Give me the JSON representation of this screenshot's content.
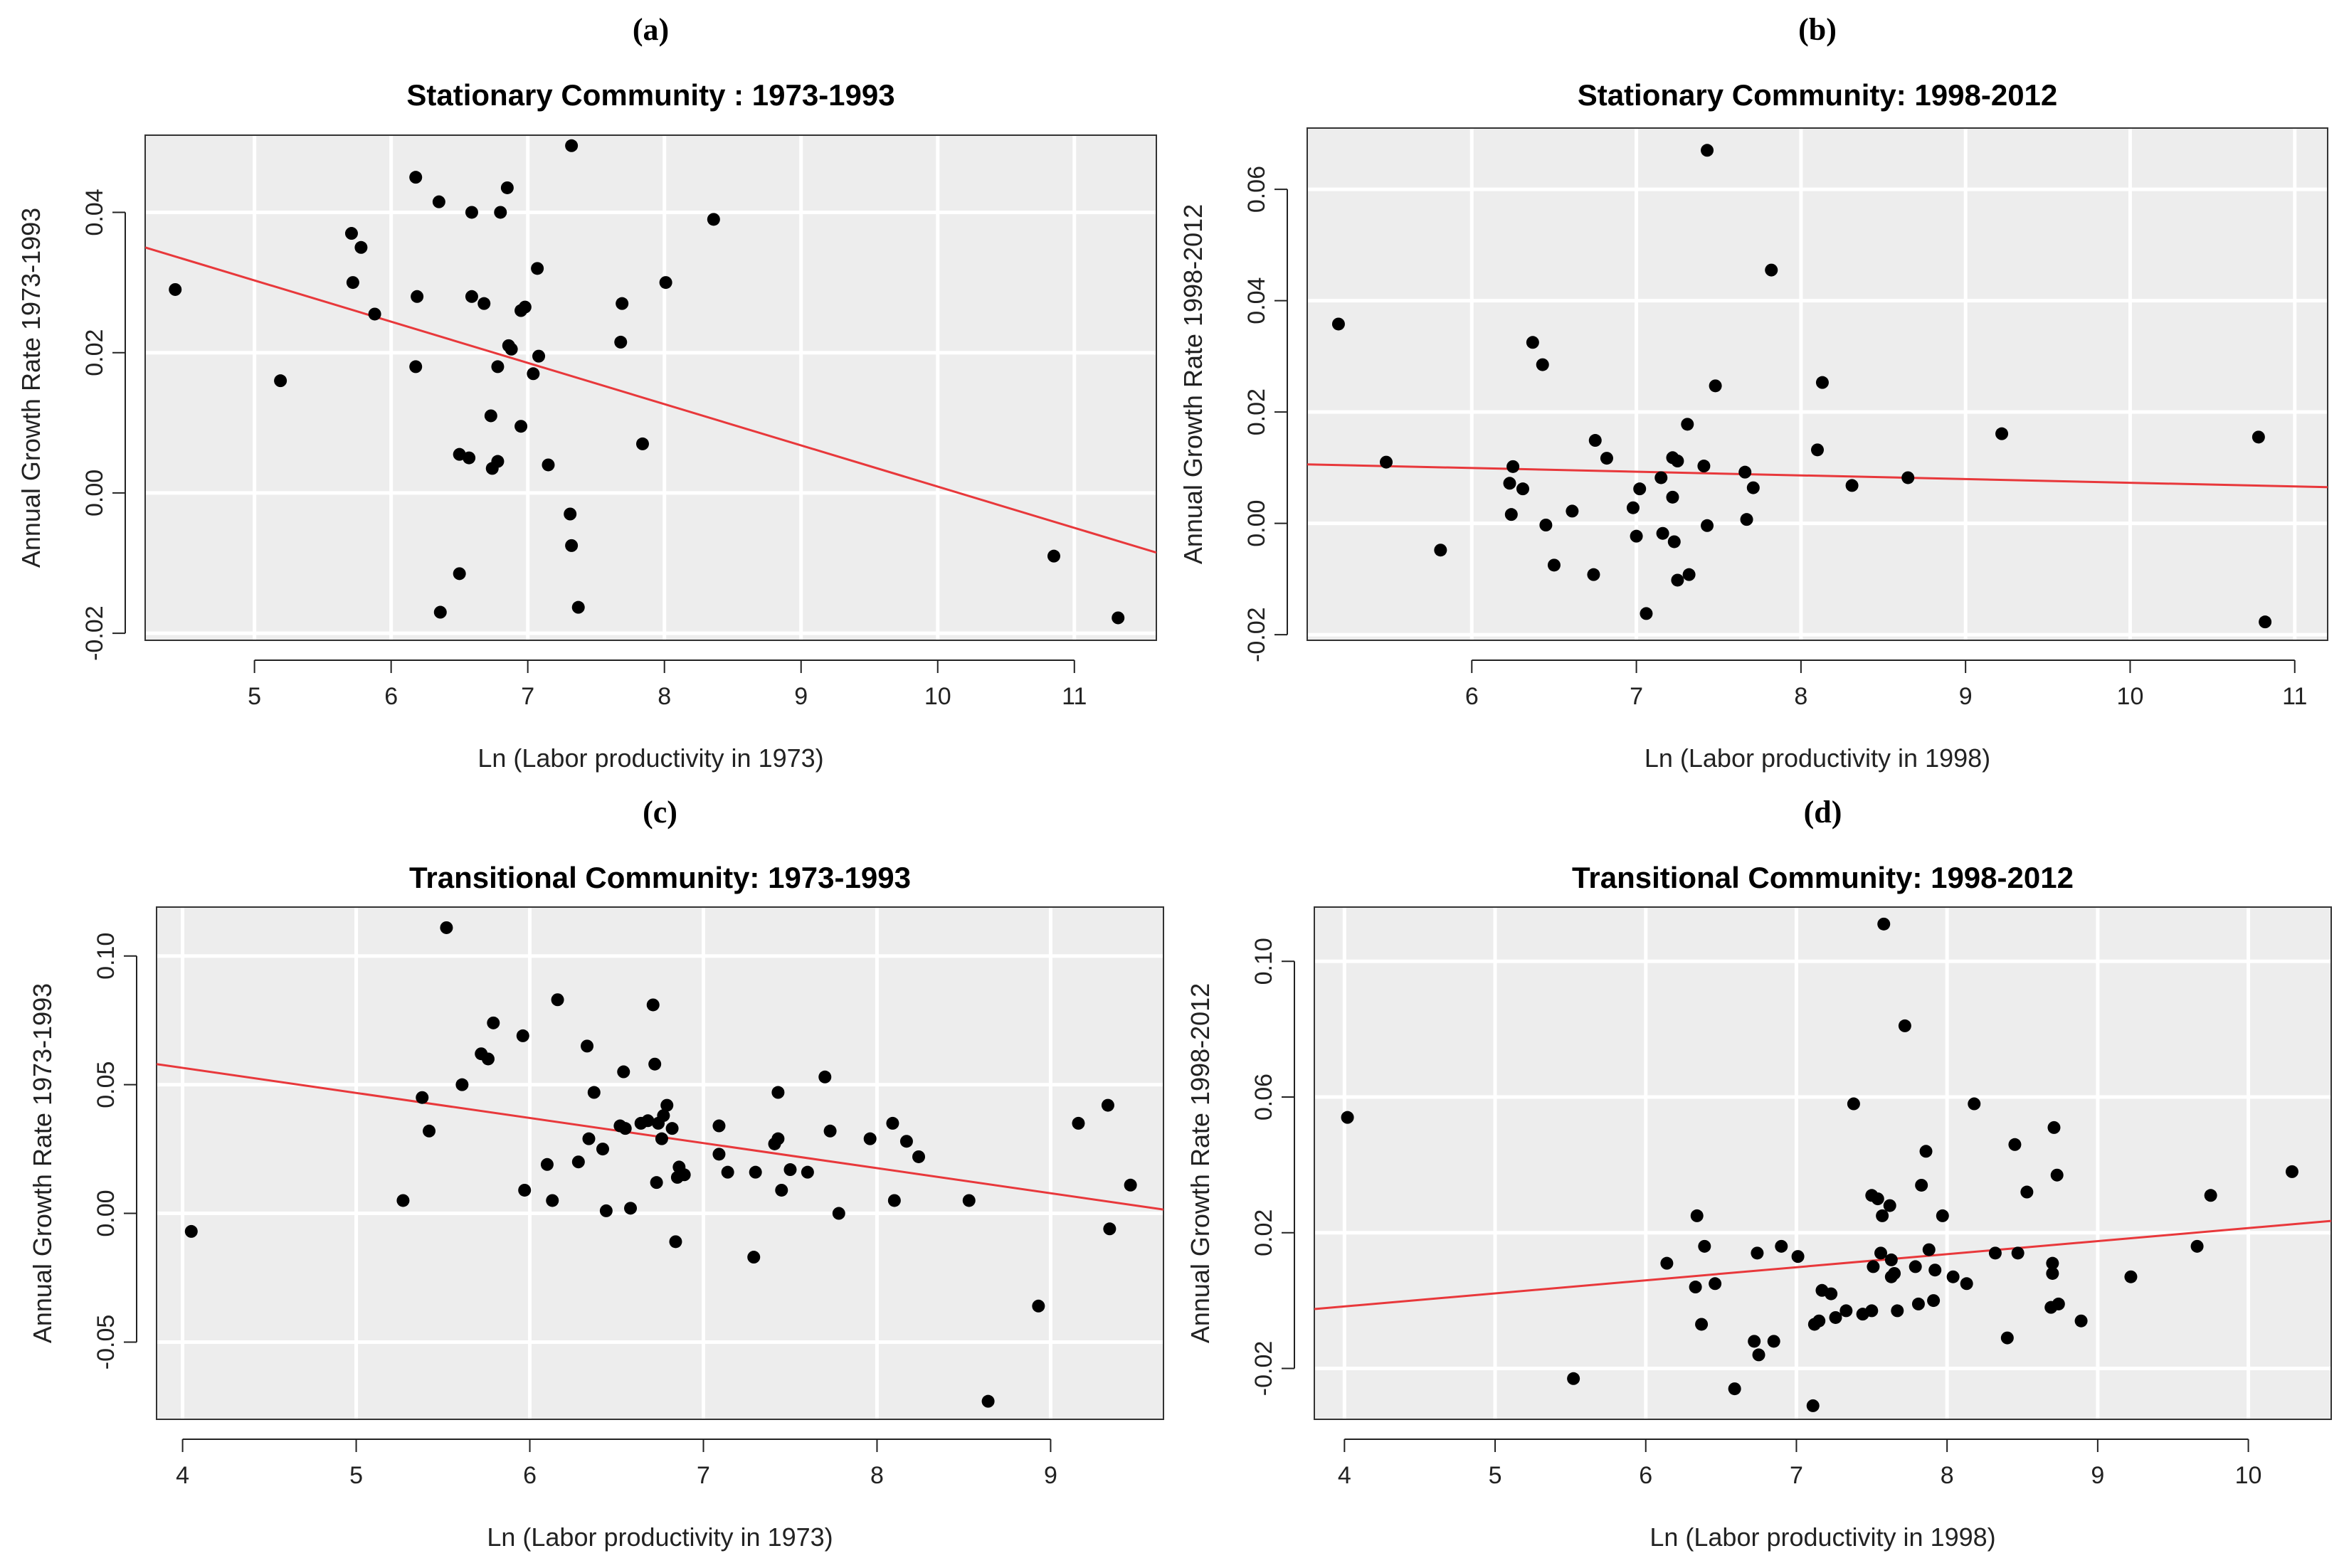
{
  "chart_data": [
    {
      "type": "scatter",
      "panel_label": "(a)",
      "title": "Stationary Community : 1973-1993",
      "xlabel": "Ln (Labor productivity in 1973)",
      "ylabel": "Annual Growth Rate 1973-1993",
      "xlim": [
        4.2,
        11.6
      ],
      "ylim": [
        -0.021,
        0.051
      ],
      "xticks": [
        5,
        6,
        7,
        8,
        9,
        10,
        11
      ],
      "yticks": [
        -0.02,
        0.0,
        0.02,
        0.04
      ],
      "ytick_labels": [
        "-0.02",
        "0.00",
        "0.02",
        "0.04"
      ],
      "grid": true,
      "fit_line": {
        "x": [
          4.2,
          11.6
        ],
        "y": [
          0.035,
          -0.0085
        ],
        "color": "#e8383b"
      },
      "points": [
        [
          4.42,
          0.029
        ],
        [
          5.19,
          0.016
        ],
        [
          5.71,
          0.037
        ],
        [
          5.72,
          0.03
        ],
        [
          5.78,
          0.035
        ],
        [
          5.88,
          0.0255
        ],
        [
          6.18,
          0.045
        ],
        [
          6.19,
          0.028
        ],
        [
          6.18,
          0.018
        ],
        [
          6.35,
          0.0415
        ],
        [
          6.59,
          0.04
        ],
        [
          6.59,
          0.028
        ],
        [
          6.68,
          0.027
        ],
        [
          6.8,
          0.04
        ],
        [
          6.85,
          0.0435
        ],
        [
          6.86,
          0.021
        ],
        [
          6.88,
          0.0205
        ],
        [
          6.95,
          0.026
        ],
        [
          6.98,
          0.0265
        ],
        [
          7.07,
          0.032
        ],
        [
          7.08,
          0.0195
        ],
        [
          7.04,
          0.017
        ],
        [
          6.78,
          0.018
        ],
        [
          6.73,
          0.011
        ],
        [
          6.95,
          0.0095
        ],
        [
          6.5,
          0.0055
        ],
        [
          6.57,
          0.005
        ],
        [
          6.74,
          0.0035
        ],
        [
          6.78,
          0.0045
        ],
        [
          7.15,
          0.004
        ],
        [
          7.32,
          0.0495
        ],
        [
          7.69,
          0.027
        ],
        [
          7.68,
          0.0215
        ],
        [
          8.01,
          0.03
        ],
        [
          8.36,
          0.039
        ],
        [
          7.84,
          0.007
        ],
        [
          7.31,
          -0.003
        ],
        [
          7.32,
          -0.0075
        ],
        [
          6.5,
          -0.0115
        ],
        [
          6.36,
          -0.017
        ],
        [
          7.37,
          -0.0163
        ],
        [
          10.85,
          -0.009
        ],
        [
          11.32,
          -0.0178
        ]
      ]
    },
    {
      "type": "scatter",
      "panel_label": "(b)",
      "title": "Stationary Community: 1998-2012",
      "xlabel": "Ln (Labor productivity in 1998)",
      "ylabel": "Annual Growth Rate 1998-2012",
      "xlim": [
        5.0,
        11.2
      ],
      "ylim": [
        -0.021,
        0.071
      ],
      "xticks": [
        6,
        7,
        8,
        9,
        10,
        11
      ],
      "yticks": [
        -0.02,
        0.0,
        0.02,
        0.04,
        0.06
      ],
      "ytick_labels": [
        "-0.02",
        "0.00",
        "0.02",
        "0.04",
        "0.06"
      ],
      "grid": true,
      "fit_line": {
        "x": [
          5.0,
          11.2
        ],
        "y": [
          0.0106,
          0.0065
        ],
        "color": "#e8383b"
      },
      "points": [
        [
          5.19,
          0.0358
        ],
        [
          5.48,
          0.011
        ],
        [
          5.81,
          -0.0048
        ],
        [
          6.37,
          0.0325
        ],
        [
          6.43,
          0.0285
        ],
        [
          6.25,
          0.0102
        ],
        [
          6.23,
          0.0072
        ],
        [
          6.31,
          0.0062
        ],
        [
          6.24,
          0.0016
        ],
        [
          6.45,
          -0.0003
        ],
        [
          6.5,
          -0.0075
        ],
        [
          6.61,
          0.0022
        ],
        [
          6.74,
          -0.0092
        ],
        [
          6.75,
          0.0149
        ],
        [
          6.82,
          0.0117
        ],
        [
          6.98,
          0.0028
        ],
        [
          7.02,
          0.0062
        ],
        [
          7.0,
          -0.0023
        ],
        [
          7.15,
          0.0082
        ],
        [
          7.16,
          -0.0018
        ],
        [
          7.06,
          -0.0162
        ],
        [
          7.22,
          0.0118
        ],
        [
          7.25,
          0.0112
        ],
        [
          7.22,
          0.0047
        ],
        [
          7.23,
          -0.0033
        ],
        [
          7.25,
          -0.0102
        ],
        [
          7.31,
          0.0178
        ],
        [
          7.32,
          -0.0092
        ],
        [
          7.41,
          0.0103
        ],
        [
          7.43,
          -0.0004
        ],
        [
          7.43,
          0.067
        ],
        [
          7.48,
          0.0247
        ],
        [
          7.66,
          0.0092
        ],
        [
          7.67,
          0.0007
        ],
        [
          7.71,
          0.0064
        ],
        [
          7.82,
          0.0455
        ],
        [
          8.1,
          0.0132
        ],
        [
          8.13,
          0.0253
        ],
        [
          8.31,
          0.0068
        ],
        [
          8.65,
          0.0082
        ],
        [
          9.22,
          0.0161
        ],
        [
          10.78,
          0.0155
        ],
        [
          10.82,
          -0.0177
        ]
      ]
    },
    {
      "type": "scatter",
      "panel_label": "(c)",
      "title": "Transitional Community: 1973-1993",
      "xlabel": "Ln (Labor productivity in 1973)",
      "ylabel": "Annual Growth Rate 1973-1993",
      "xlim": [
        3.85,
        9.65
      ],
      "ylim": [
        -0.08,
        0.119
      ],
      "xticks": [
        4,
        5,
        6,
        7,
        8,
        9
      ],
      "yticks": [
        -0.05,
        0.0,
        0.05,
        0.1
      ],
      "ytick_labels": [
        "-0.05",
        "0.00",
        "0.05",
        "0.10"
      ],
      "grid": true,
      "fit_line": {
        "x": [
          3.85,
          9.65
        ],
        "y": [
          0.058,
          0.0015
        ],
        "color": "#e8383b"
      },
      "points": [
        [
          4.05,
          -0.007
        ],
        [
          5.27,
          0.005
        ],
        [
          5.38,
          0.045
        ],
        [
          5.42,
          0.032
        ],
        [
          5.52,
          0.111
        ],
        [
          5.61,
          0.05
        ],
        [
          5.72,
          0.062
        ],
        [
          5.76,
          0.06
        ],
        [
          5.79,
          0.074
        ],
        [
          5.96,
          0.069
        ],
        [
          5.97,
          0.009
        ],
        [
          6.1,
          0.019
        ],
        [
          6.13,
          0.005
        ],
        [
          6.16,
          0.083
        ],
        [
          6.28,
          0.02
        ],
        [
          6.33,
          0.065
        ],
        [
          6.34,
          0.029
        ],
        [
          6.37,
          0.047
        ],
        [
          6.42,
          0.025
        ],
        [
          6.44,
          0.001
        ],
        [
          6.52,
          0.034
        ],
        [
          6.54,
          0.055
        ],
        [
          6.55,
          0.033
        ],
        [
          6.58,
          0.002
        ],
        [
          6.64,
          0.035
        ],
        [
          6.68,
          0.036
        ],
        [
          6.71,
          0.081
        ],
        [
          6.72,
          0.058
        ],
        [
          6.73,
          0.012
        ],
        [
          6.74,
          0.035
        ],
        [
          6.76,
          0.029
        ],
        [
          6.77,
          0.038
        ],
        [
          6.79,
          0.042
        ],
        [
          6.82,
          0.033
        ],
        [
          6.84,
          -0.011
        ],
        [
          6.85,
          0.014
        ],
        [
          6.86,
          0.018
        ],
        [
          6.89,
          0.015
        ],
        [
          7.09,
          0.034
        ],
        [
          7.09,
          0.023
        ],
        [
          7.14,
          0.016
        ],
        [
          7.29,
          -0.017
        ],
        [
          7.3,
          0.016
        ],
        [
          7.41,
          0.027
        ],
        [
          7.43,
          0.047
        ],
        [
          7.43,
          0.029
        ],
        [
          7.45,
          0.009
        ],
        [
          7.5,
          0.017
        ],
        [
          7.6,
          0.016
        ],
        [
          7.7,
          0.053
        ],
        [
          7.73,
          0.032
        ],
        [
          7.78,
          0.0
        ],
        [
          7.96,
          0.029
        ],
        [
          8.09,
          0.035
        ],
        [
          8.1,
          0.005
        ],
        [
          8.17,
          0.028
        ],
        [
          8.24,
          0.022
        ],
        [
          8.53,
          0.005
        ],
        [
          8.64,
          -0.073
        ],
        [
          8.93,
          -0.036
        ],
        [
          9.16,
          0.035
        ],
        [
          9.33,
          0.042
        ],
        [
          9.34,
          -0.006
        ],
        [
          9.46,
          0.011
        ]
      ]
    },
    {
      "type": "scatter",
      "panel_label": "(d)",
      "title": "Transitional Community: 1998-2012",
      "xlabel": "Ln (Labor productivity in 1998)",
      "ylabel": "Annual Growth Rate 1998-2012",
      "xlim": [
        3.8,
        10.55
      ],
      "ylim": [
        -0.035,
        0.116
      ],
      "xticks": [
        4,
        5,
        6,
        7,
        8,
        9,
        10
      ],
      "yticks": [
        -0.02,
        0.02,
        0.06,
        0.1
      ],
      "ytick_labels": [
        "-0.02",
        "0.02",
        "0.06",
        "0.10"
      ],
      "grid": true,
      "fit_line": {
        "x": [
          3.8,
          10.55
        ],
        "y": [
          -0.0025,
          0.0235
        ],
        "color": "#e8383b"
      },
      "points": [
        [
          4.02,
          0.054
        ],
        [
          5.52,
          -0.023
        ],
        [
          6.14,
          0.011
        ],
        [
          6.33,
          0.004
        ],
        [
          6.34,
          0.025
        ],
        [
          6.37,
          -0.007
        ],
        [
          6.39,
          0.016
        ],
        [
          6.46,
          0.005
        ],
        [
          6.59,
          -0.026
        ],
        [
          6.72,
          -0.012
        ],
        [
          6.74,
          0.014
        ],
        [
          6.75,
          -0.016
        ],
        [
          6.85,
          -0.012
        ],
        [
          6.9,
          0.016
        ],
        [
          7.01,
          0.013
        ],
        [
          7.11,
          -0.031
        ],
        [
          7.12,
          -0.007
        ],
        [
          7.15,
          -0.006
        ],
        [
          7.17,
          0.003
        ],
        [
          7.23,
          0.002
        ],
        [
          7.26,
          -0.005
        ],
        [
          7.33,
          -0.003
        ],
        [
          7.38,
          0.058
        ],
        [
          7.44,
          -0.004
        ],
        [
          7.5,
          -0.003
        ],
        [
          7.5,
          0.031
        ],
        [
          7.51,
          0.01
        ],
        [
          7.54,
          0.03
        ],
        [
          7.56,
          0.014
        ],
        [
          7.57,
          0.025
        ],
        [
          7.58,
          0.111
        ],
        [
          7.62,
          0.028
        ],
        [
          7.63,
          0.012
        ],
        [
          7.63,
          0.007
        ],
        [
          7.65,
          0.008
        ],
        [
          7.67,
          -0.003
        ],
        [
          7.72,
          0.081
        ],
        [
          7.79,
          0.01
        ],
        [
          7.81,
          -0.001
        ],
        [
          7.83,
          0.034
        ],
        [
          7.86,
          0.044
        ],
        [
          7.88,
          0.015
        ],
        [
          7.91,
          0.0
        ],
        [
          7.92,
          0.009
        ],
        [
          7.97,
          0.025
        ],
        [
          8.04,
          0.007
        ],
        [
          8.13,
          0.005
        ],
        [
          8.18,
          0.058
        ],
        [
          8.32,
          0.014
        ],
        [
          8.4,
          -0.011
        ],
        [
          8.45,
          0.046
        ],
        [
          8.47,
          0.014
        ],
        [
          8.53,
          0.032
        ],
        [
          8.69,
          -0.002
        ],
        [
          8.7,
          0.008
        ],
        [
          8.7,
          0.011
        ],
        [
          8.71,
          0.051
        ],
        [
          8.73,
          0.037
        ],
        [
          8.74,
          -0.001
        ],
        [
          8.89,
          -0.006
        ],
        [
          9.22,
          0.007
        ],
        [
          9.66,
          0.016
        ],
        [
          9.75,
          0.031
        ],
        [
          10.29,
          0.038
        ]
      ]
    }
  ]
}
